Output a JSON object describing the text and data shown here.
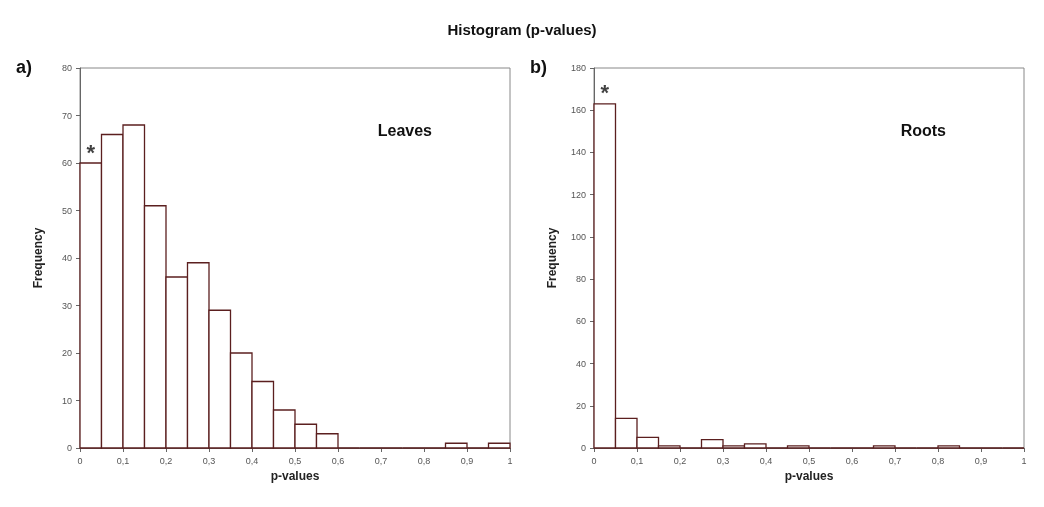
{
  "chart_data": [
    {
      "type": "histogram",
      "title": "Histogram (p-values)",
      "xlabel": "p-values",
      "ylabel": "Frequency",
      "color": "#5b1f1f",
      "bins": [
        0,
        0.05,
        0.1,
        0.15,
        0.2,
        0.25,
        0.3,
        0.35,
        0.4,
        0.45,
        0.5,
        0.55,
        0.6,
        0.65,
        0.7,
        0.75,
        0.8,
        0.85,
        0.9,
        0.95,
        1
      ],
      "values": [
        60,
        66,
        68,
        51,
        36,
        39,
        29,
        20,
        14,
        8,
        5,
        3,
        0,
        0,
        0,
        0,
        0,
        1,
        0,
        1
      ],
      "xlim": [
        0,
        1
      ],
      "xticks": [
        {
          "value": 0,
          "label": "0"
        },
        {
          "value": 0.1,
          "label": "0,1"
        },
        {
          "value": 0.2,
          "label": "0,2"
        },
        {
          "value": 0.3,
          "label": "0,3"
        },
        {
          "value": 0.4,
          "label": "0,4"
        },
        {
          "value": 0.5,
          "label": "0,5"
        },
        {
          "value": 0.6,
          "label": "0,6"
        },
        {
          "value": 0.7,
          "label": "0,7"
        },
        {
          "value": 0.8,
          "label": "0,8"
        },
        {
          "value": 0.9,
          "label": "0,9"
        },
        {
          "value": 1,
          "label": "1"
        }
      ],
      "ylim": [
        0,
        80
      ],
      "yticks": [
        0,
        10,
        20,
        30,
        40,
        50,
        60,
        70,
        80
      ],
      "grid": false,
      "annotations": [
        "a)",
        "Leaves",
        {
          "text": "*",
          "x": 0.025,
          "y": 60
        }
      ]
    },
    {
      "type": "histogram",
      "xlabel": "p-values",
      "ylabel": "Frequency",
      "color": "#5b1f1f",
      "bins": [
        0,
        0.05,
        0.1,
        0.15,
        0.2,
        0.25,
        0.3,
        0.35,
        0.4,
        0.45,
        0.5,
        0.55,
        0.6,
        0.65,
        0.7,
        0.75,
        0.8,
        0.85,
        0.9,
        0.95,
        1
      ],
      "values": [
        163,
        14,
        5,
        1,
        0,
        4,
        1,
        2,
        0,
        1,
        0,
        0,
        0,
        1,
        0,
        0,
        1,
        0,
        0,
        0
      ],
      "xlim": [
        0,
        1
      ],
      "xticks": [
        {
          "value": 0,
          "label": "0"
        },
        {
          "value": 0.1,
          "label": "0,1"
        },
        {
          "value": 0.2,
          "label": "0,2"
        },
        {
          "value": 0.3,
          "label": "0,3"
        },
        {
          "value": 0.4,
          "label": "0,4"
        },
        {
          "value": 0.5,
          "label": "0,5"
        },
        {
          "value": 0.6,
          "label": "0,6"
        },
        {
          "value": 0.7,
          "label": "0,7"
        },
        {
          "value": 0.8,
          "label": "0,8"
        },
        {
          "value": 0.9,
          "label": "0,9"
        },
        {
          "value": 1,
          "label": "1"
        }
      ],
      "ylim": [
        0,
        180
      ],
      "yticks": [
        0,
        20,
        40,
        60,
        80,
        100,
        120,
        140,
        160,
        180
      ],
      "grid": false,
      "annotations": [
        "b)",
        "Roots",
        {
          "text": "*",
          "x": 0.025,
          "y": 163
        }
      ]
    }
  ]
}
